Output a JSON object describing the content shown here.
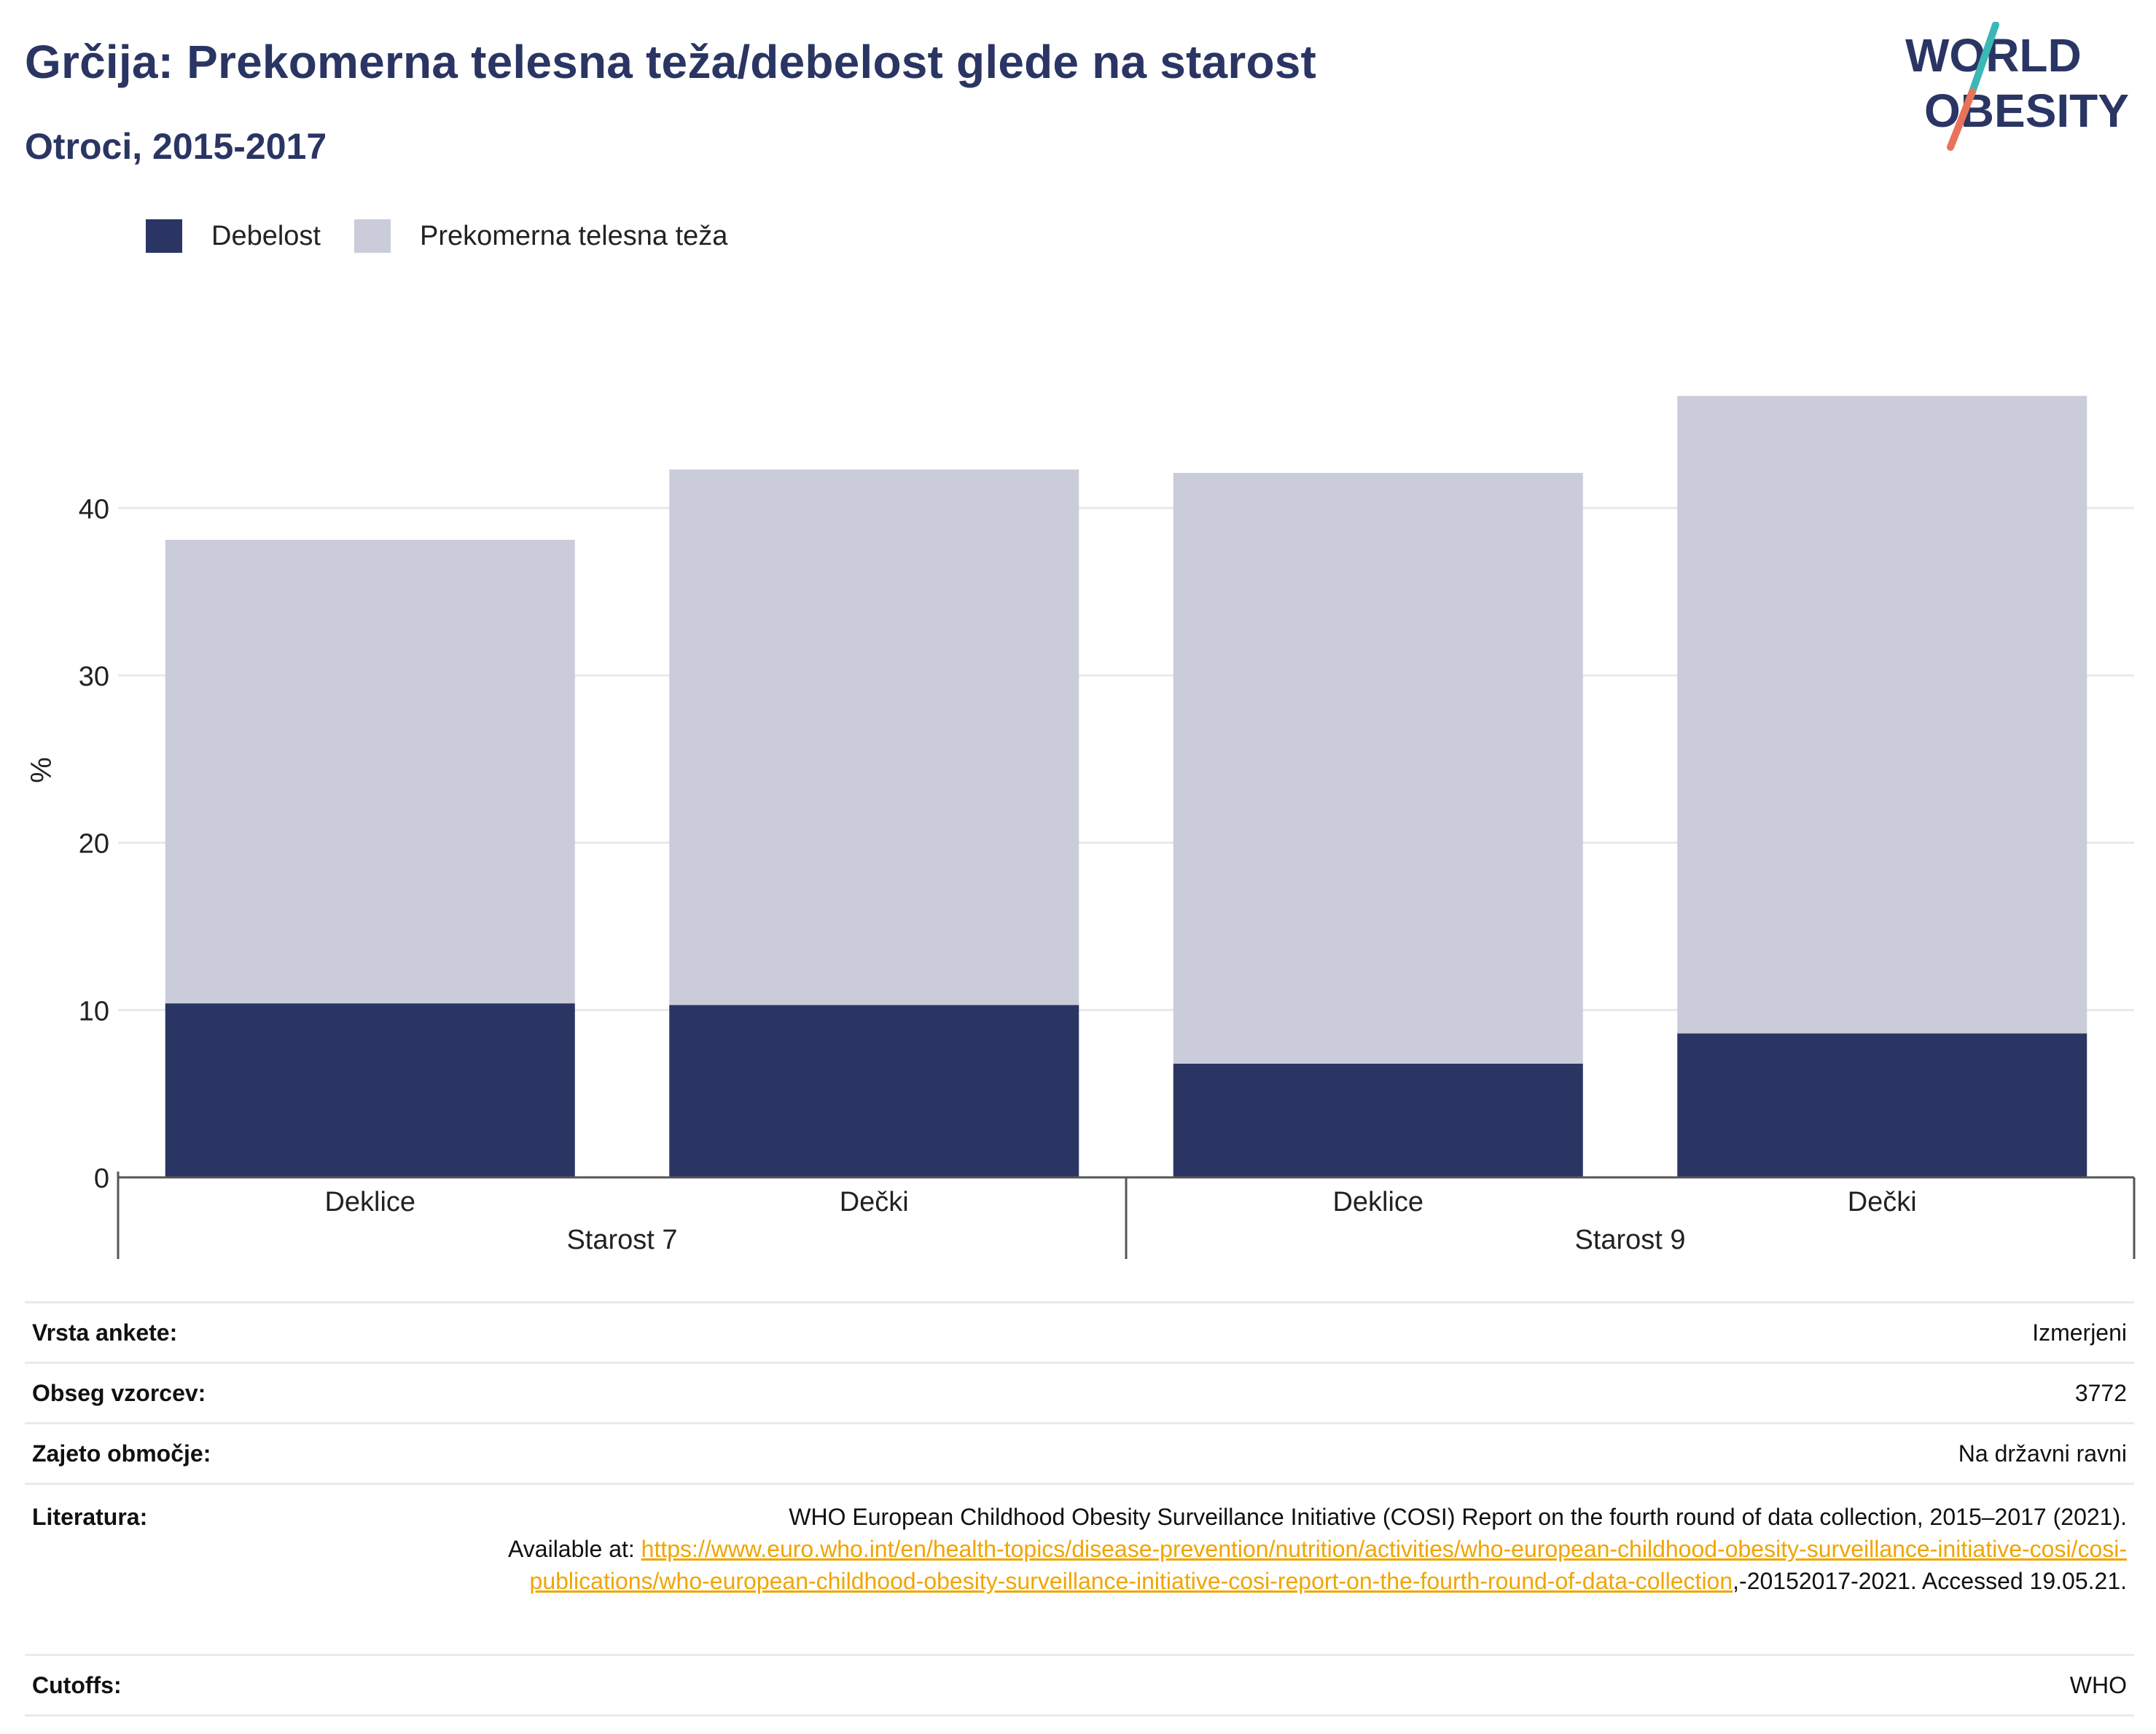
{
  "header": {
    "title": "Grčija: Prekomerna telesna teža/debelost glede na starost",
    "subtitle": "Otroci, 2015-2017"
  },
  "logo": {
    "line1": "WORLD",
    "line2": "OBESITY",
    "colors": {
      "text": "#2a3563",
      "slash_top": "#3bb8b5",
      "slash_bottom": "#e8735a"
    }
  },
  "colors": {
    "obesity": "#2a3563",
    "overweight": "#cacdd9",
    "title": "#2a3563",
    "link": "#f0a500"
  },
  "chart_data": {
    "type": "bar",
    "stacked": true,
    "ylabel": "%",
    "ylim": [
      0,
      46.5
    ],
    "yticks": [
      0,
      10,
      20,
      30,
      40
    ],
    "grid": true,
    "legend_position": "top-left",
    "categories": [
      {
        "label": "Deklice",
        "group": "Starost 7"
      },
      {
        "label": "Dečki",
        "group": "Starost 7"
      },
      {
        "label": "Deklice",
        "group": "Starost 9"
      },
      {
        "label": "Dečki",
        "group": "Starost 9"
      }
    ],
    "groups": [
      "Starost 7",
      "Starost 9"
    ],
    "series": [
      {
        "name": "Debelost",
        "values": [
          10.4,
          10.3,
          6.8,
          8.6
        ]
      },
      {
        "name": "Prekomerna telesna teža",
        "values": [
          27.7,
          32.0,
          35.3,
          38.1
        ]
      }
    ]
  },
  "info": {
    "rows": [
      {
        "label": "Vrsta ankete:",
        "value": "Izmerjeni"
      },
      {
        "label": "Obseg vzorcev:",
        "value": "3772"
      },
      {
        "label": "Zajeto območje:",
        "value": "Na državni ravni"
      }
    ],
    "reference": {
      "label": "Literatura:",
      "text1": "WHO European Childhood Obesity Surveillance Initiative (COSI) Report on the fourth round of data collection, 2015–2017 (2021).",
      "text2": "Available at: ",
      "link": "https://www.euro.who.int/en/health-topics/disease-prevention/nutrition/activities/who-european-childhood-obesity-surveillance-initiative-cosi/cosi-publications/who-european-childhood-obesity-surveillance-initiative-cosi-report-on-the-fourth-round-of-data-collection",
      "text3": ",-20152017-2021. Accessed 19.05.21."
    },
    "cutoffs": {
      "label": "Cutoffs:",
      "value": "WHO"
    }
  }
}
